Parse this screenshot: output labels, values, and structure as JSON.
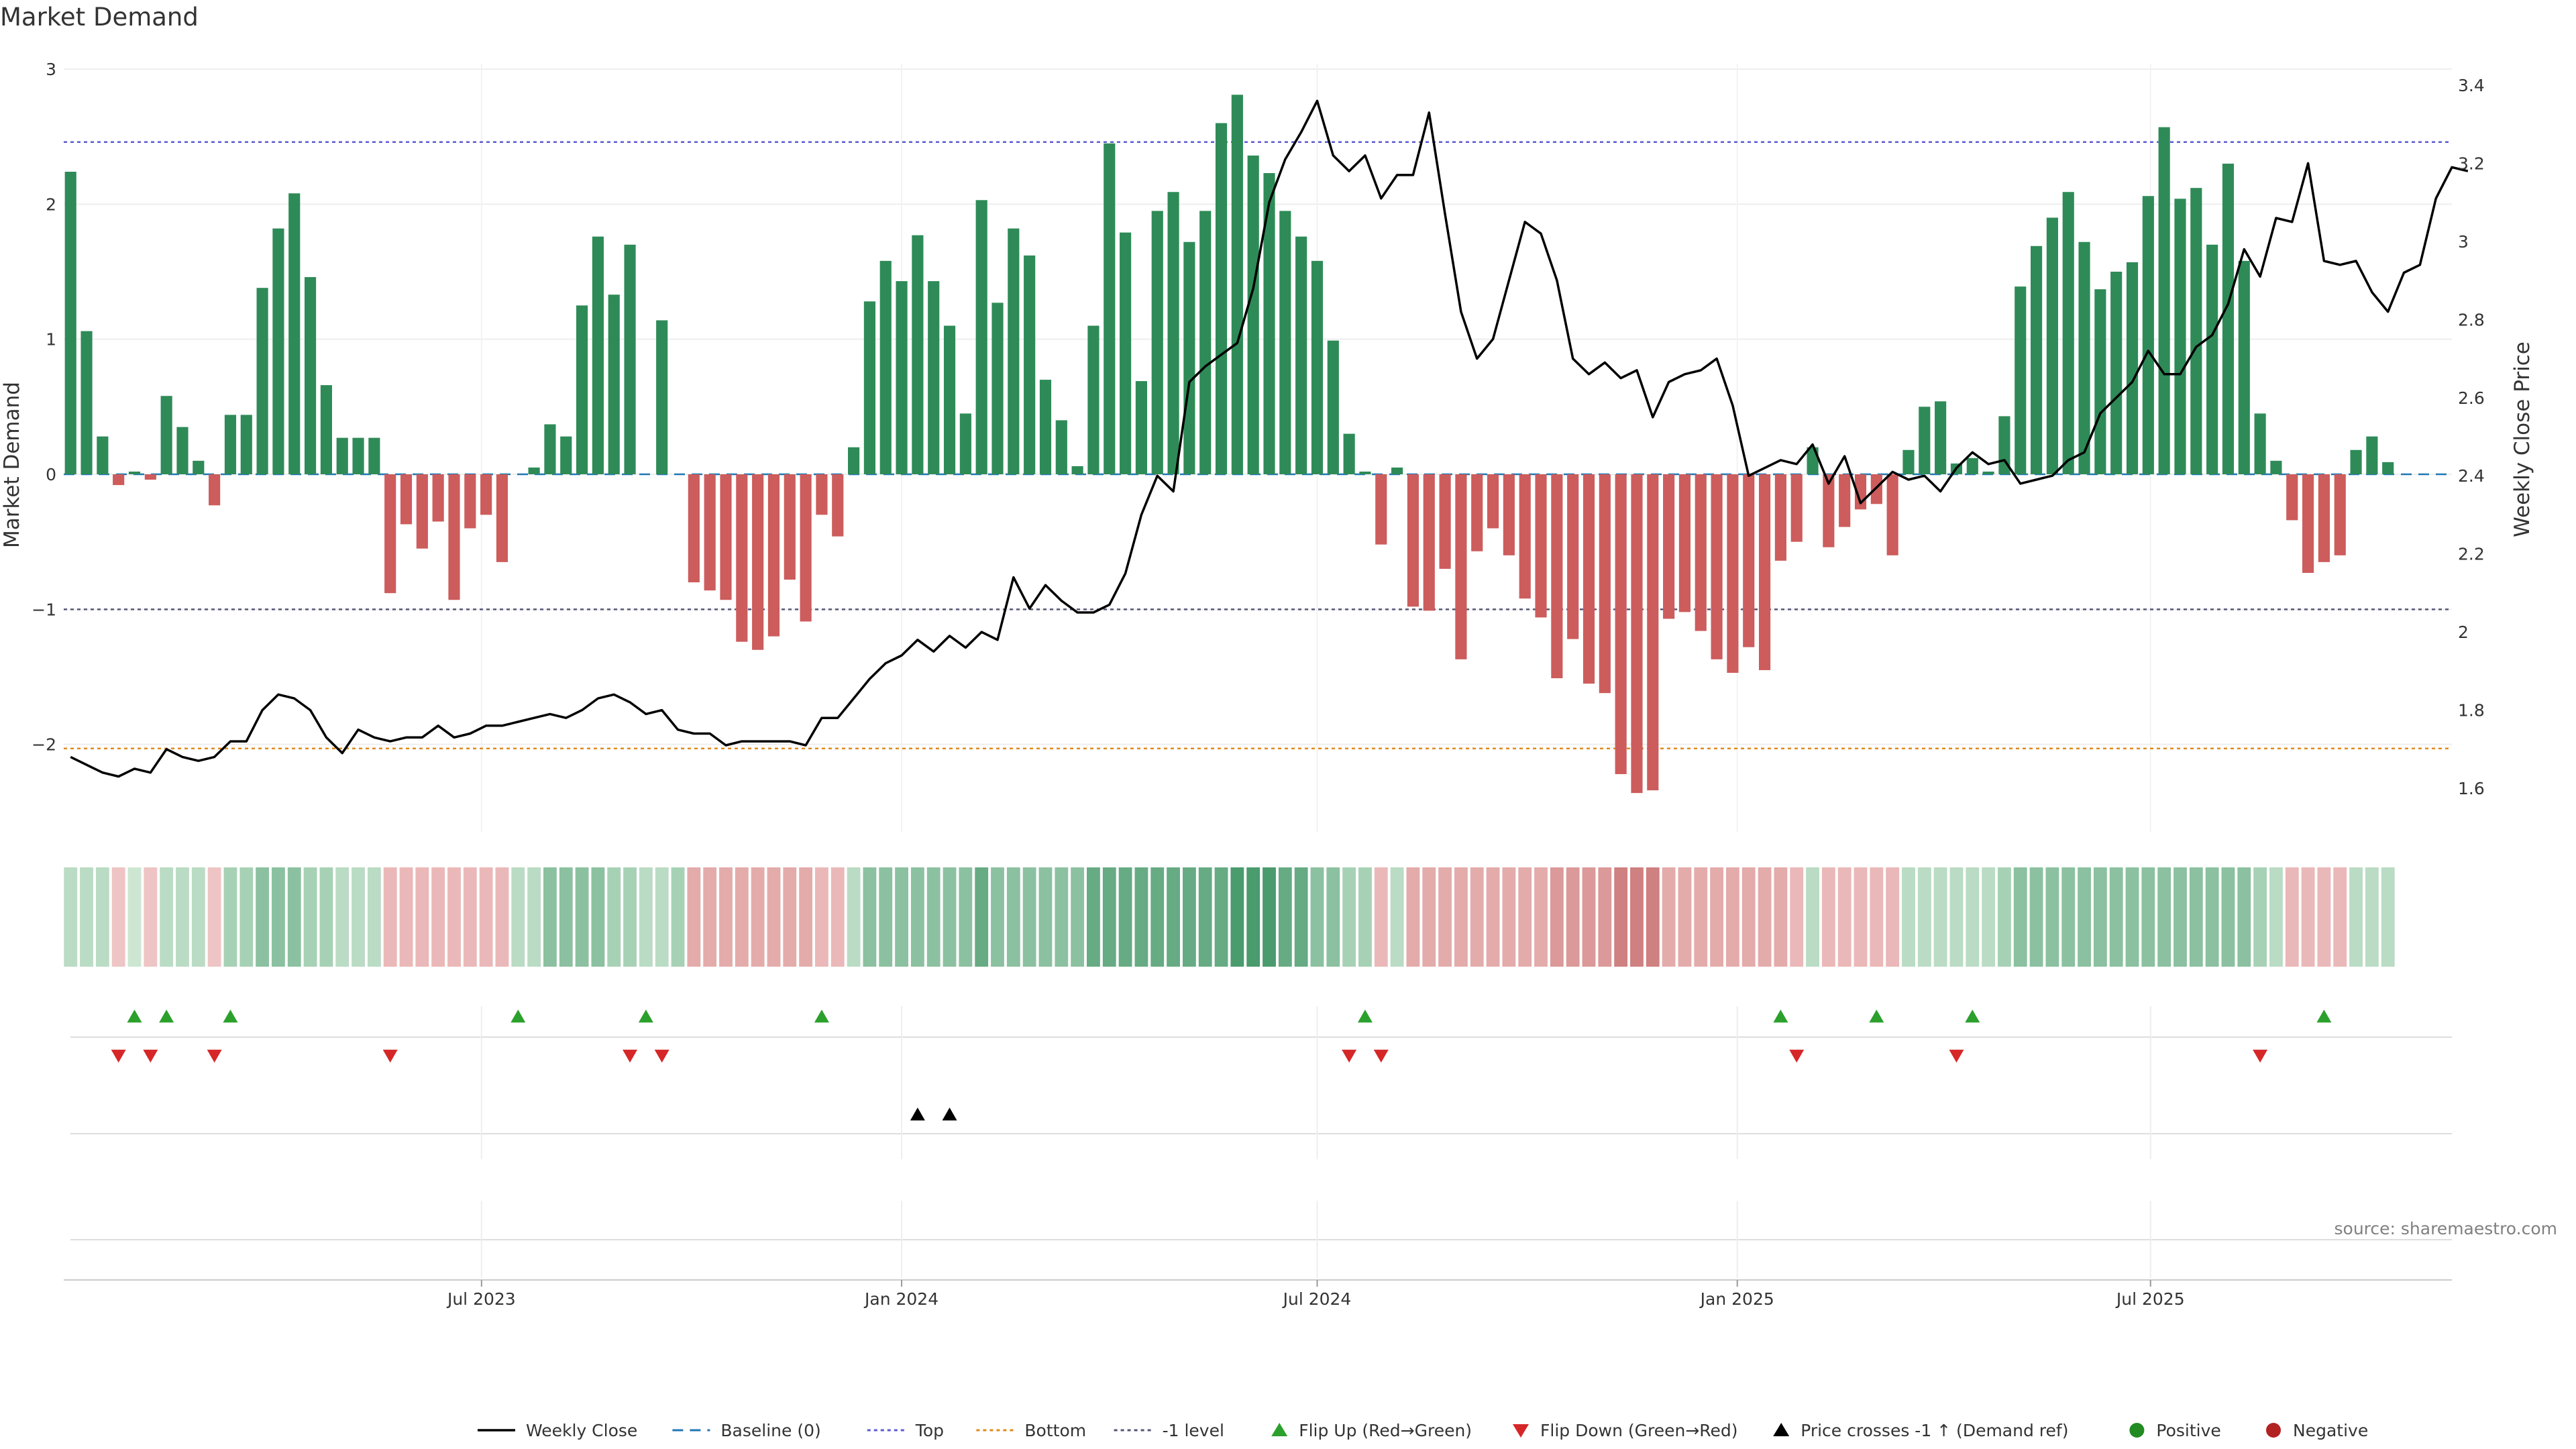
{
  "chart_data": {
    "type": "bar",
    "title": "Market Demand",
    "ylabel": "Market Demand",
    "y2label": "Weekly Close Price",
    "source": "source: sharemaestro.com",
    "ylim": [
      -2.6,
      3
    ],
    "yticks": [
      3,
      2,
      1,
      0,
      -1,
      -2
    ],
    "ytick_labels": [
      "3",
      "2",
      "1",
      "0",
      "−1",
      "−2"
    ],
    "y2lim": [
      1.55,
      3.45
    ],
    "y2ticks": [
      3.4,
      3.2,
      3,
      2.8,
      2.6,
      2.4,
      2.2,
      2,
      1.8,
      1.6
    ],
    "y2tick_labels": [
      "3.4",
      "3.2",
      "3",
      "2.8",
      "2.6",
      "2.4",
      "2.2",
      "2",
      "1.8",
      "1.6"
    ],
    "x_start": "2023-01-02",
    "x_interval_days": 7,
    "x_range": [
      "2022-12-30",
      "2025-11-10"
    ],
    "xticks": [
      {
        "date": "2023-07-01",
        "label": "Jul 2023"
      },
      {
        "date": "2024-01-01",
        "label": "Jan 2024"
      },
      {
        "date": "2024-07-01",
        "label": "Jul 2024"
      },
      {
        "date": "2025-01-01",
        "label": "Jan 2025"
      },
      {
        "date": "2025-07-01",
        "label": "Jul 2025"
      }
    ],
    "reference_lines": [
      {
        "name": "Baseline (0)",
        "value": 0,
        "color": "#1f77b4",
        "dash": "dashed"
      },
      {
        "name": "Top",
        "value": 2.46,
        "color": "#5b5bd6",
        "dash": "dotted"
      },
      {
        "name": "Bottom",
        "value": -2.03,
        "color": "#e08a1e",
        "dash": "dotted"
      },
      {
        "name": "-1 level",
        "value": -1,
        "color": "#555577",
        "dash": "dotted"
      }
    ],
    "colors": {
      "positive": "#2e8b57",
      "negative": "#cd5c5c",
      "price": "#000000",
      "flip_up": "#2ca02c",
      "flip_down": "#d62728",
      "cross": "#000000",
      "positive_dot": "#228b22",
      "negative_dot": "#b22222"
    },
    "demand": [
      2.24,
      1.06,
      0.28,
      -0.08,
      0.02,
      -0.04,
      0.58,
      0.35,
      0.1,
      -0.23,
      0.44,
      0.44,
      1.38,
      1.82,
      2.08,
      1.46,
      0.66,
      0.27,
      0.27,
      0.27,
      -0.88,
      -0.37,
      -0.55,
      -0.35,
      -0.93,
      -0.4,
      -0.3,
      -0.65,
      0.0,
      0.05,
      0.37,
      0.28,
      1.25,
      1.76,
      1.33,
      1.7,
      0.0,
      1.14,
      0.0,
      -0.8,
      -0.86,
      -0.93,
      -1.24,
      -1.3,
      -1.2,
      -0.78,
      -1.09,
      -0.3,
      -0.46,
      0.2,
      1.28,
      1.58,
      1.43,
      1.77,
      1.43,
      1.1,
      0.45,
      2.03,
      1.27,
      1.82,
      1.62,
      0.7,
      0.4,
      0.06,
      1.1,
      2.45,
      1.79,
      0.69,
      1.95,
      2.09,
      1.72,
      1.95,
      2.6,
      2.81,
      2.36,
      2.23,
      1.95,
      1.76,
      1.58,
      0.99,
      0.3,
      0.02,
      -0.52,
      0.05,
      -0.98,
      -1.01,
      -0.7,
      -1.37,
      -0.57,
      -0.4,
      -0.6,
      -0.92,
      -1.06,
      -1.51,
      -1.22,
      -1.55,
      -1.62,
      -2.22,
      -2.36,
      -2.34,
      -1.07,
      -1.02,
      -1.16,
      -1.37,
      -1.47,
      -1.28,
      -1.45,
      -0.64,
      -0.5,
      0.2,
      -0.54,
      -0.39,
      -0.26,
      -0.22,
      -0.6,
      0.18,
      0.5,
      0.54,
      0.08,
      0.12,
      0.02,
      0.43,
      1.39,
      1.69,
      1.9,
      2.09,
      1.72,
      1.37,
      1.5,
      1.57,
      2.06,
      2.57,
      2.04,
      2.12,
      1.7,
      2.3,
      1.58,
      0.45,
      0.1,
      -0.34,
      -0.73,
      -0.65,
      -0.6,
      0.18,
      0.28,
      0.09
    ],
    "weekly_close": [
      1.68,
      1.66,
      1.64,
      1.63,
      1.65,
      1.64,
      1.7,
      1.68,
      1.67,
      1.68,
      1.72,
      1.72,
      1.8,
      1.84,
      1.83,
      1.8,
      1.73,
      1.69,
      1.75,
      1.73,
      1.72,
      1.73,
      1.73,
      1.76,
      1.73,
      1.74,
      1.76,
      1.76,
      1.77,
      1.78,
      1.79,
      1.78,
      1.8,
      1.83,
      1.84,
      1.82,
      1.79,
      1.8,
      1.75,
      1.74,
      1.74,
      1.71,
      1.72,
      1.72,
      1.72,
      1.72,
      1.71,
      1.78,
      1.78,
      1.83,
      1.88,
      1.92,
      1.94,
      1.98,
      1.95,
      1.99,
      1.96,
      2.0,
      1.98,
      2.14,
      2.06,
      2.12,
      2.08,
      2.05,
      2.05,
      2.07,
      2.15,
      2.3,
      2.4,
      2.36,
      2.64,
      2.68,
      2.71,
      2.74,
      2.88,
      3.1,
      3.21,
      3.28,
      3.36,
      3.22,
      3.18,
      3.22,
      3.11,
      3.17,
      3.17,
      3.33,
      3.07,
      2.82,
      2.7,
      2.75,
      2.9,
      3.05,
      3.02,
      2.9,
      2.7,
      2.66,
      2.69,
      2.65,
      2.67,
      2.55,
      2.64,
      2.66,
      2.67,
      2.7,
      2.58,
      2.4,
      2.42,
      2.44,
      2.43,
      2.48,
      2.38,
      2.45,
      2.33,
      2.37,
      2.41,
      2.39,
      2.4,
      2.36,
      2.42,
      2.46,
      2.43,
      2.44,
      2.38,
      2.39,
      2.4,
      2.44,
      2.46,
      2.56,
      2.6,
      2.64,
      2.72,
      2.66,
      2.66,
      2.73,
      2.76,
      2.84,
      2.98,
      2.91,
      3.06,
      3.05,
      3.2,
      2.95,
      2.94,
      2.95,
      2.87,
      2.82,
      2.92,
      2.94,
      3.11,
      3.19,
      3.18
    ]
  },
  "strip": {
    "type": "heatmap",
    "intensity": [
      0.25,
      0.25,
      0.25,
      0.15,
      0.15,
      0.15,
      0.25,
      0.25,
      0.25,
      0.15,
      0.35,
      0.35,
      0.5,
      0.5,
      0.5,
      0.35,
      0.35,
      0.25,
      0.25,
      0.25,
      0.25,
      0.25,
      0.25,
      0.25,
      0.25,
      0.25,
      0.25,
      0.25,
      0.25,
      0.25,
      0.5,
      0.5,
      0.5,
      0.5,
      0.35,
      0.35,
      0.25,
      0.25,
      0.35,
      0.35,
      0.35,
      0.35,
      0.35,
      0.35,
      0.35,
      0.35,
      0.35,
      0.25,
      0.25,
      0.25,
      0.5,
      0.5,
      0.5,
      0.5,
      0.5,
      0.5,
      0.5,
      0.7,
      0.5,
      0.5,
      0.5,
      0.5,
      0.5,
      0.5,
      0.7,
      0.7,
      0.7,
      0.7,
      0.7,
      0.7,
      0.7,
      0.7,
      0.7,
      0.85,
      0.85,
      0.85,
      0.7,
      0.7,
      0.5,
      0.5,
      0.35,
      0.35,
      0.25,
      0.25,
      0.35,
      0.35,
      0.35,
      0.35,
      0.35,
      0.35,
      0.35,
      0.35,
      0.35,
      0.5,
      0.5,
      0.5,
      0.5,
      0.7,
      0.7,
      0.7,
      0.35,
      0.35,
      0.35,
      0.35,
      0.35,
      0.35,
      0.35,
      0.35,
      0.25,
      0.25,
      0.25,
      0.25,
      0.25,
      0.25,
      0.25,
      0.25,
      0.25,
      0.25,
      0.25,
      0.25,
      0.25,
      0.35,
      0.5,
      0.5,
      0.5,
      0.5,
      0.5,
      0.5,
      0.5,
      0.5,
      0.5,
      0.5,
      0.5,
      0.5,
      0.5,
      0.5,
      0.5,
      0.35,
      0.25,
      0.25,
      0.25,
      0.25,
      0.25,
      0.25,
      0.25,
      0.25
    ]
  },
  "events": {
    "flip_up_weeks": [
      4,
      6,
      10,
      28,
      36,
      47,
      81,
      107,
      113,
      119,
      141
    ],
    "flip_down_weeks": [
      3,
      5,
      9,
      20,
      35,
      37,
      80,
      82,
      108,
      118,
      137
    ],
    "price_cross_weeks": [
      53,
      55
    ]
  },
  "legend": [
    {
      "label": "Weekly Close",
      "kind": "solid-line",
      "color": "#000000"
    },
    {
      "label": "Baseline (0)",
      "kind": "dashed-line",
      "color": "#1f77b4"
    },
    {
      "label": "Top",
      "kind": "dotted-line",
      "color": "#5b5bd6"
    },
    {
      "label": "Bottom",
      "kind": "dotted-line",
      "color": "#e08a1e"
    },
    {
      "label": "-1 level",
      "kind": "dotted-line",
      "color": "#555577"
    },
    {
      "label": "Flip Up (Red→Green)",
      "kind": "triangle-up",
      "color": "#2ca02c"
    },
    {
      "label": "Flip Down (Green→Red)",
      "kind": "triangle-down",
      "color": "#d62728"
    },
    {
      "label": "Price crosses -1 ↑ (Demand ref)",
      "kind": "triangle-up",
      "color": "#000000"
    },
    {
      "label": "Positive",
      "kind": "circle",
      "color": "#228b22"
    },
    {
      "label": "Negative",
      "kind": "circle",
      "color": "#b22222"
    }
  ]
}
